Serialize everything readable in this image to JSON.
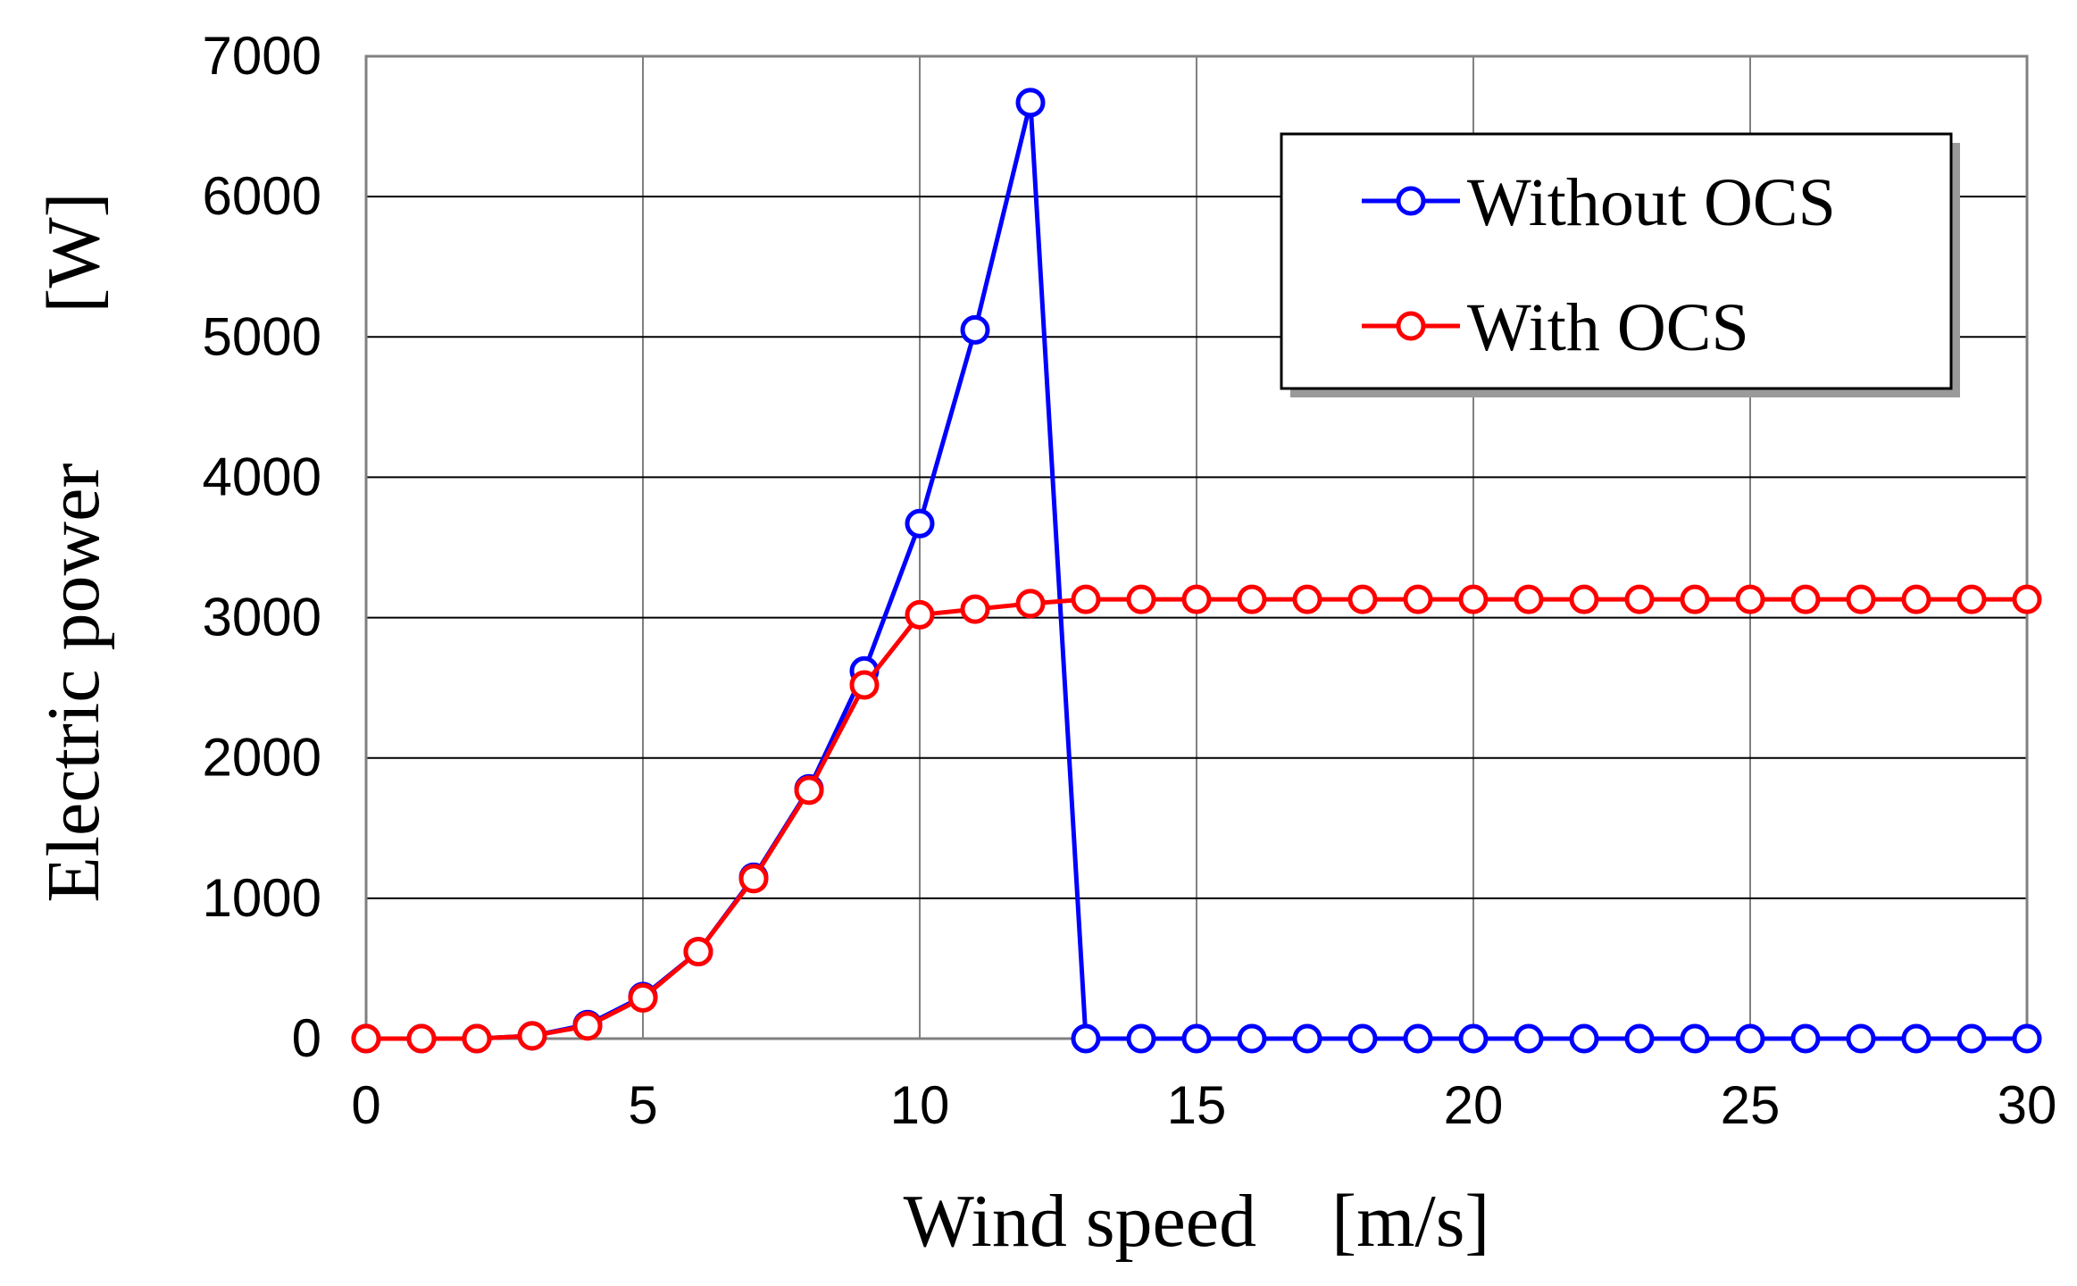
{
  "chart_data": {
    "type": "line",
    "title": "",
    "xlabel": "Wind speed　[m/s]",
    "ylabel": "Electric power　　[W]",
    "xlim": [
      0,
      30
    ],
    "ylim": [
      0,
      7000
    ],
    "xticks": [
      0,
      5,
      10,
      15,
      20,
      25,
      30
    ],
    "yticks": [
      0,
      1000,
      2000,
      3000,
      4000,
      5000,
      6000,
      7000
    ],
    "grid": true,
    "legend_position": "top-right",
    "x": [
      0,
      1,
      2,
      3,
      4,
      5,
      6,
      7,
      8,
      9,
      10,
      11,
      12,
      13,
      14,
      15,
      16,
      17,
      18,
      19,
      20,
      21,
      22,
      23,
      24,
      25,
      26,
      27,
      28,
      29,
      30
    ],
    "series": [
      {
        "name": "Without OCS",
        "color": "#0000ff",
        "values": [
          0,
          0,
          0,
          20,
          100,
          300,
          620,
          1150,
          1780,
          2620,
          3670,
          5050,
          6670,
          0,
          0,
          0,
          0,
          0,
          0,
          0,
          0,
          0,
          0,
          0,
          0,
          0,
          0,
          0,
          0,
          0,
          0
        ]
      },
      {
        "name": "With OCS",
        "color": "#ff0000",
        "values": [
          0,
          0,
          0,
          20,
          90,
          290,
          620,
          1140,
          1770,
          2520,
          3020,
          3060,
          3100,
          3130,
          3130,
          3130,
          3130,
          3130,
          3130,
          3130,
          3130,
          3130,
          3130,
          3130,
          3130,
          3130,
          3130,
          3130,
          3130,
          3130,
          3130
        ]
      }
    ]
  }
}
